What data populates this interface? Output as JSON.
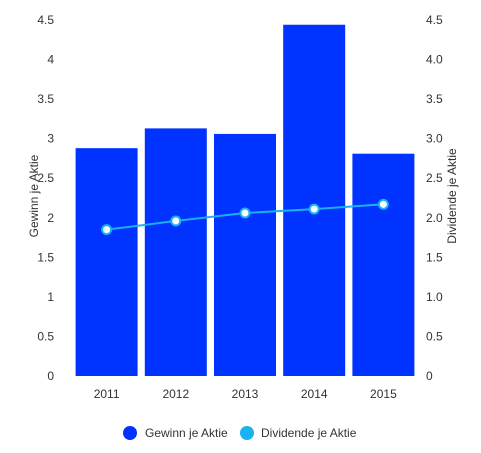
{
  "chart_data": {
    "type": "bar",
    "categories": [
      "2011",
      "2012",
      "2013",
      "2014",
      "2015"
    ],
    "series": [
      {
        "name": "Gewinn je Aktie",
        "type": "bar",
        "axis": "left",
        "color": "#0033ff",
        "values": [
          2.88,
          3.13,
          3.06,
          4.44,
          2.81
        ]
      },
      {
        "name": "Dividende je Aktie",
        "type": "line",
        "axis": "right",
        "color": "#1ab2f0",
        "values": [
          1.85,
          1.96,
          2.06,
          2.11,
          2.17
        ]
      }
    ],
    "ylabel": "Gewinn je Aktie",
    "y2label": "Dividende je Aktie",
    "ylim": [
      0,
      4.5
    ],
    "y2lim": [
      0,
      4.5
    ],
    "yticks": [
      "0",
      "0.5",
      "1",
      "1.5",
      "2",
      "2.5",
      "3",
      "3.5",
      "4",
      "4.5"
    ],
    "y2ticks": [
      "0",
      "0.5",
      "1.0",
      "1.5",
      "2.0",
      "2.5",
      "3.0",
      "3.5",
      "4.0",
      "4.5"
    ],
    "grid": false,
    "legend_position": "bottom"
  }
}
